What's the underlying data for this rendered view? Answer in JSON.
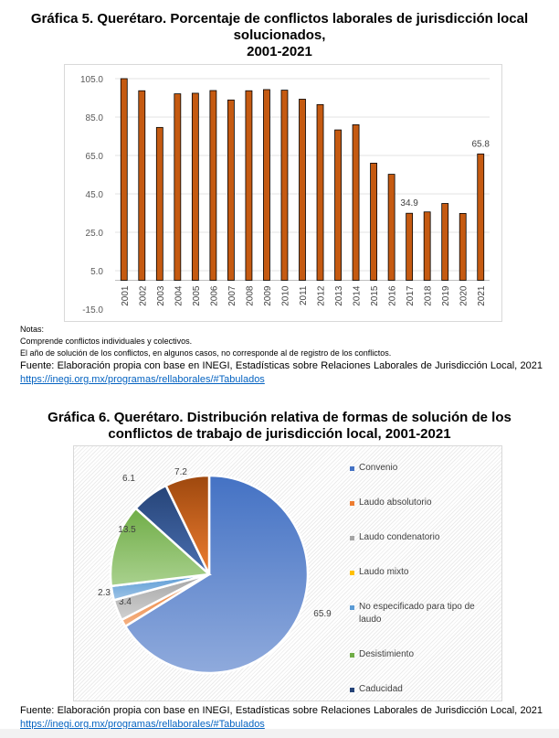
{
  "chart1": {
    "title_lines": [
      "Gráfica 5. Querétaro. Porcentaje de conflictos laborales de jurisdicción local",
      "solucionados,",
      "2001-2021"
    ]
  },
  "notes": {
    "heading": "Notas:",
    "lines": [
      "Comprende conflictos individuales y colectivos.",
      "El año de solución de los conflictos, en algunos casos, no corresponde al de registro de los conflictos."
    ]
  },
  "source1": {
    "text": "Fuente: Elaboración propia con base en INEGI, Estadísticas sobre Relaciones Laborales de Jurisdicción Local, 2021 ",
    "link": "https://inegi.org.mx/programas/rellaborales/#Tabulados"
  },
  "chart2": {
    "title_lines": [
      "Gráfica 6. Querétaro. Distribución relativa de formas de solución de los",
      "conflictos de trabajo de jurisdicción local, 2001-2021"
    ]
  },
  "source2": {
    "text": "Fuente: Elaboración propia con base en INEGI, Estadísticas sobre Relaciones Laborales de Jurisdicción Local, 2021 ",
    "link": "https://inegi.org.mx/programas/rellaborales/#Tabulados"
  },
  "chart_data": [
    {
      "type": "bar",
      "title": "Gráfica 5. Querétaro. Porcentaje de conflictos laborales de jurisdicción local solucionados, 2001-2021",
      "xlabel": "",
      "ylabel": "",
      "ylim": [
        -15,
        105
      ],
      "yticks": [
        "105.0",
        "85.0",
        "65.0",
        "45.0",
        "25.0",
        "5.0",
        "-15.0"
      ],
      "ytick_values": [
        105,
        85,
        65,
        45,
        25,
        5,
        -15
      ],
      "grid": true,
      "bar_color": "#c55a11",
      "categories": [
        "2001",
        "2002",
        "2003",
        "2004",
        "2005",
        "2006",
        "2007",
        "2008",
        "2009",
        "2010",
        "2011",
        "2012",
        "2013",
        "2014",
        "2015",
        "2016",
        "2017",
        "2018",
        "2019",
        "2020",
        "2021"
      ],
      "values": [
        105,
        98.7,
        79.6,
        97.1,
        97.4,
        98.8,
        93.9,
        98.7,
        99.3,
        99.0,
        94.3,
        91.5,
        78.3,
        81.0,
        61.0,
        55.2,
        34.9,
        35.6,
        40.0,
        34.8,
        65.8
      ],
      "data_labels": {
        "2017": "34.9",
        "2021": "65.8"
      }
    },
    {
      "type": "pie",
      "title": "Gráfica 6. Querétaro. Distribución relativa de formas de solución de los conflictos de trabajo de jurisdicción local, 2001-2021",
      "legend_position": "right",
      "slices": [
        {
          "name": "Convenio",
          "value": 65.9,
          "label": "65.9",
          "color": "#4472c4",
          "color2": "#8faadc",
          "in_legend": true
        },
        {
          "name": "Laudo absolutorio",
          "value": 1.2,
          "label": "",
          "color": "#ed7d31",
          "color2": "#f4b183",
          "in_legend": true
        },
        {
          "name": "Laudo condenatorio",
          "value": 3.4,
          "label": "3.4",
          "color": "#a5a5a5",
          "color2": "#d0d0d0",
          "in_legend": true
        },
        {
          "name": "Laudo mixto",
          "value": 0,
          "label": "",
          "color": "#ffc000",
          "color2": "#ffd966",
          "in_legend": true
        },
        {
          "name": "No especificado para tipo de laudo",
          "value": 2.3,
          "label": "2.3",
          "color": "#5b9bd5",
          "color2": "#9dc3e6",
          "in_legend": true
        },
        {
          "name": "Desistimiento",
          "value": 13.5,
          "label": "13.5",
          "color": "#70ad47",
          "color2": "#a9d18e",
          "in_legend": true
        },
        {
          "name": "Caducidad",
          "value": 6.1,
          "label": "6.1",
          "color": "#264478",
          "color2": "#4a6fb0",
          "in_legend": true
        },
        {
          "name": "",
          "value": 7.2,
          "label": "7.2",
          "color": "#9e480e",
          "color2": "#ed7d31",
          "in_legend": false
        }
      ]
    }
  ]
}
